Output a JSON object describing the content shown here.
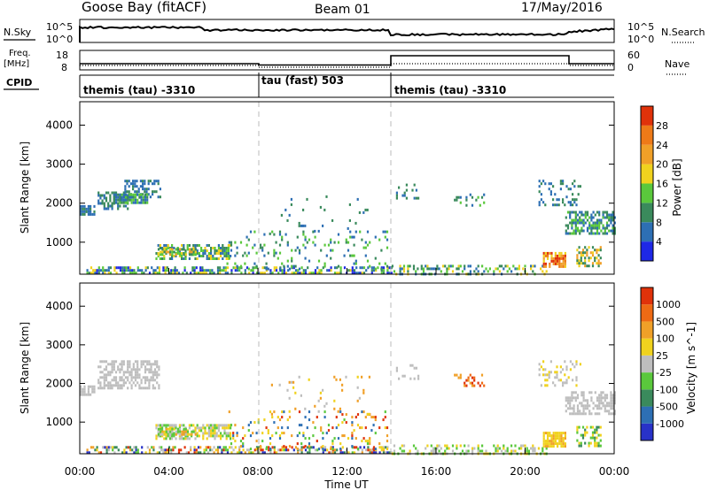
{
  "header": {
    "station": "Goose Bay (fitACF)",
    "beam": "Beam 01",
    "date": "17/May/2016"
  },
  "noise_panel": {
    "left_label": "N.Sky",
    "left_ticks": [
      "10^5",
      "10^0"
    ],
    "right_label": "N.Search",
    "right_ticks": [
      "10^5",
      "10^0"
    ],
    "legend_style": "dotted"
  },
  "freq_panel": {
    "left_label_line1": "Freq.",
    "left_label_line2": "[MHz]",
    "left_ticks": [
      "18",
      "8"
    ],
    "right_label": "Nave",
    "right_ticks": [
      "60",
      "0"
    ],
    "legend_style": "dotted"
  },
  "cpid": {
    "label": "CPID",
    "segments": [
      {
        "text": "themis (tau) -3310",
        "start": "00:00"
      },
      {
        "text": "tau (fast) 503",
        "start": "08:00"
      },
      {
        "text": "themis (tau) -3310",
        "start": "14:00"
      }
    ]
  },
  "x_axis": {
    "label": "Time UT",
    "ticks": [
      "00:00",
      "04:00",
      "08:00",
      "12:00",
      "16:00",
      "20:00",
      "00:00"
    ]
  },
  "chart_data": [
    {
      "type": "heatmap",
      "name": "power",
      "ylabel": "Slant Range [km]",
      "yticks": [
        1000,
        2000,
        3000,
        4000
      ],
      "ylim": [
        180,
        4600
      ],
      "xlim_hours": [
        0,
        24
      ],
      "colorbar": {
        "label": "Power [dB]",
        "ticks": [
          "4",
          "8",
          "12",
          "16",
          "20",
          "24",
          "28"
        ],
        "colors": [
          "#1e28e6",
          "#2d6fb4",
          "#3a8a5c",
          "#5ac83c",
          "#f0d21e",
          "#f0a028",
          "#ee7a18",
          "#e0320a"
        ]
      },
      "clusters": [
        {
          "t0": 0.0,
          "t1": 0.7,
          "r0": 1700,
          "r1": 1950,
          "density": 0.85,
          "palette": [
            1,
            1,
            2
          ]
        },
        {
          "t0": 0.8,
          "t1": 2.2,
          "r0": 1850,
          "r1": 2300,
          "density": 0.6,
          "palette": [
            1,
            2,
            2
          ]
        },
        {
          "t0": 2.0,
          "t1": 3.6,
          "r0": 2150,
          "r1": 2600,
          "density": 0.45,
          "palette": [
            1,
            1,
            2
          ]
        },
        {
          "t0": 1.5,
          "t1": 3.0,
          "r0": 2000,
          "r1": 2250,
          "density": 0.9,
          "palette": [
            1,
            2,
            3
          ]
        },
        {
          "t0": 3.4,
          "t1": 6.8,
          "r0": 580,
          "r1": 950,
          "density": 0.55,
          "palette": [
            1,
            2,
            3,
            4
          ]
        },
        {
          "t0": 3.5,
          "t1": 5.2,
          "r0": 650,
          "r1": 850,
          "density": 0.7,
          "palette": [
            2,
            3,
            4,
            5
          ]
        },
        {
          "t0": 0.3,
          "t1": 14.0,
          "r0": 180,
          "r1": 380,
          "density": 0.5,
          "palette": [
            0,
            1,
            2,
            3,
            4
          ]
        },
        {
          "t0": 6.5,
          "t1": 13.8,
          "r0": 300,
          "r1": 1300,
          "density": 0.12,
          "palette": [
            1,
            2,
            3
          ]
        },
        {
          "t0": 8.5,
          "t1": 13.0,
          "r0": 1200,
          "r1": 2200,
          "density": 0.04,
          "palette": [
            1,
            2
          ]
        },
        {
          "t0": 14.0,
          "t1": 21.0,
          "r0": 180,
          "r1": 420,
          "density": 0.35,
          "palette": [
            1,
            2,
            3,
            4
          ]
        },
        {
          "t0": 16.8,
          "t1": 18.2,
          "r0": 1950,
          "r1": 2250,
          "density": 0.3,
          "palette": [
            1,
            2,
            3
          ]
        },
        {
          "t0": 20.8,
          "t1": 21.8,
          "r0": 350,
          "r1": 750,
          "density": 0.75,
          "palette": [
            4,
            5,
            6,
            7
          ]
        },
        {
          "t0": 21.8,
          "t1": 24.0,
          "r0": 1250,
          "r1": 1800,
          "density": 0.6,
          "palette": [
            1,
            2,
            3
          ]
        },
        {
          "t0": 22.3,
          "t1": 23.4,
          "r0": 380,
          "r1": 900,
          "density": 0.55,
          "palette": [
            2,
            4,
            5
          ]
        },
        {
          "t0": 20.6,
          "t1": 22.5,
          "r0": 1950,
          "r1": 2600,
          "density": 0.25,
          "palette": [
            1,
            2
          ]
        },
        {
          "t0": 14.2,
          "t1": 15.2,
          "r0": 2100,
          "r1": 2500,
          "density": 0.15,
          "palette": [
            1,
            2
          ]
        }
      ]
    },
    {
      "type": "heatmap",
      "name": "velocity",
      "ylabel": "Slant Range [km]",
      "yticks": [
        1000,
        2000,
        3000,
        4000
      ],
      "ylim": [
        180,
        4600
      ],
      "xlim_hours": [
        0,
        24
      ],
      "colorbar": {
        "label": "Velocity [m s^-1]",
        "ticks": [
          "1000",
          "500",
          "100",
          "25",
          "-25",
          "-100",
          "-500",
          "-1000"
        ],
        "colors": [
          "#2832c8",
          "#2d6fb4",
          "#3a8a5c",
          "#5ac83c",
          "#bebebe",
          "#f0d21e",
          "#f0a028",
          "#ee6a14",
          "#e0320a"
        ]
      },
      "clusters": [
        {
          "t0": 0.0,
          "t1": 0.7,
          "r0": 1700,
          "r1": 1950,
          "density": 0.85,
          "palette": [
            4,
            4,
            4
          ]
        },
        {
          "t0": 0.8,
          "t1": 3.6,
          "r0": 1850,
          "r1": 2600,
          "density": 0.55,
          "palette": [
            4,
            4,
            4,
            4
          ]
        },
        {
          "t0": 3.4,
          "t1": 6.8,
          "r0": 580,
          "r1": 950,
          "density": 0.6,
          "palette": [
            3,
            4,
            5
          ]
        },
        {
          "t0": 3.5,
          "t1": 5.2,
          "r0": 650,
          "r1": 850,
          "density": 0.7,
          "palette": [
            3,
            4,
            5,
            6
          ]
        },
        {
          "t0": 0.3,
          "t1": 14.0,
          "r0": 180,
          "r1": 380,
          "density": 0.5,
          "palette": [
            0,
            2,
            3,
            4,
            5,
            6,
            8
          ]
        },
        {
          "t0": 6.5,
          "t1": 13.8,
          "r0": 300,
          "r1": 1300,
          "density": 0.12,
          "palette": [
            1,
            3,
            5,
            6,
            8
          ]
        },
        {
          "t0": 8.5,
          "t1": 13.0,
          "r0": 1200,
          "r1": 2200,
          "density": 0.04,
          "palette": [
            4,
            5,
            6
          ]
        },
        {
          "t0": 14.0,
          "t1": 21.0,
          "r0": 180,
          "r1": 420,
          "density": 0.35,
          "palette": [
            3,
            4,
            5
          ]
        },
        {
          "t0": 16.8,
          "t1": 18.2,
          "r0": 1950,
          "r1": 2250,
          "density": 0.3,
          "palette": [
            6,
            7,
            8
          ]
        },
        {
          "t0": 20.8,
          "t1": 21.8,
          "r0": 350,
          "r1": 750,
          "density": 0.75,
          "palette": [
            5,
            5,
            6
          ]
        },
        {
          "t0": 21.8,
          "t1": 24.0,
          "r0": 1250,
          "r1": 1800,
          "density": 0.6,
          "palette": [
            4,
            4,
            4
          ]
        },
        {
          "t0": 22.3,
          "t1": 23.4,
          "r0": 380,
          "r1": 900,
          "density": 0.55,
          "palette": [
            2,
            3,
            5
          ]
        },
        {
          "t0": 20.6,
          "t1": 22.5,
          "r0": 1950,
          "r1": 2600,
          "density": 0.25,
          "palette": [
            4,
            5,
            4
          ]
        },
        {
          "t0": 14.2,
          "t1": 15.2,
          "r0": 2100,
          "r1": 2500,
          "density": 0.15,
          "palette": [
            4,
            4
          ]
        }
      ]
    }
  ]
}
